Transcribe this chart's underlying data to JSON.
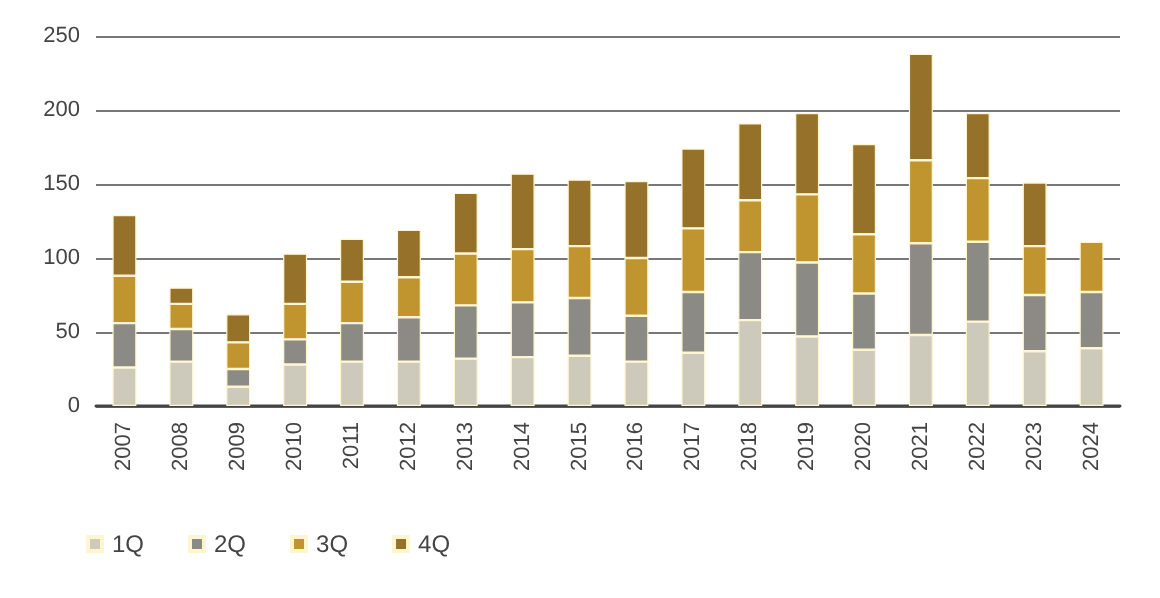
{
  "chart_data": {
    "type": "bar",
    "stacked": true,
    "categories": [
      "2007",
      "2008",
      "2009",
      "2010",
      "2011",
      "2012",
      "2013",
      "2014",
      "2015",
      "2016",
      "2017",
      "2018",
      "2019",
      "2020",
      "2021",
      "2022",
      "2023",
      "2024"
    ],
    "series": [
      {
        "name": "1Q",
        "color": "#cdc9bb",
        "values": [
          26,
          30,
          13,
          28,
          30,
          30,
          32,
          33,
          34,
          30,
          36,
          58,
          47,
          38,
          48,
          57,
          37,
          39
        ]
      },
      {
        "name": "2Q",
        "color": "#8c8a84",
        "values": [
          30,
          22,
          12,
          17,
          26,
          30,
          36,
          37,
          39,
          31,
          41,
          46,
          50,
          38,
          62,
          54,
          38,
          38
        ]
      },
      {
        "name": "3Q",
        "color": "#c0952f",
        "values": [
          32,
          17,
          18,
          24,
          28,
          27,
          35,
          36,
          35,
          39,
          43,
          35,
          46,
          40,
          56,
          43,
          33,
          34
        ]
      },
      {
        "name": "4Q",
        "color": "#95712a",
        "values": [
          41,
          11,
          19,
          34,
          29,
          32,
          41,
          51,
          45,
          52,
          54,
          52,
          55,
          61,
          72,
          44,
          43,
          null
        ]
      }
    ],
    "ylim": [
      0,
      250
    ],
    "yticks": [
      0,
      50,
      100,
      150,
      200,
      250
    ],
    "grid": "y",
    "legend": "bottom left"
  }
}
